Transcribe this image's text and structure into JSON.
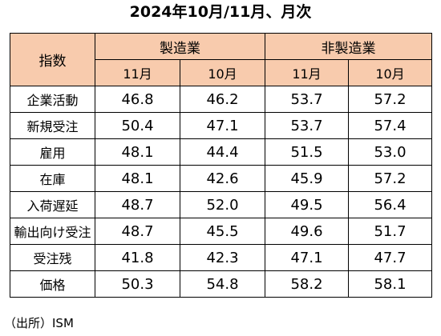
{
  "title": "2024年10月/11月、月次",
  "table": {
    "index_header": "指数",
    "groups": [
      "製造業",
      "非製造業"
    ],
    "subheaders": [
      "11月",
      "10月",
      "11月",
      "10月"
    ],
    "rows": [
      {
        "label": "企業活動",
        "values": [
          "46.8",
          "46.2",
          "53.7",
          "57.2"
        ]
      },
      {
        "label": "新規受注",
        "values": [
          "50.4",
          "47.1",
          "53.7",
          "57.4"
        ]
      },
      {
        "label": "雇用",
        "values": [
          "48.1",
          "44.4",
          "51.5",
          "53.0"
        ]
      },
      {
        "label": "在庫",
        "values": [
          "48.1",
          "42.6",
          "45.9",
          "57.2"
        ]
      },
      {
        "label": "入荷遅延",
        "values": [
          "48.7",
          "52.0",
          "49.5",
          "56.4"
        ]
      },
      {
        "label": "輸出向け受注",
        "values": [
          "48.7",
          "45.5",
          "49.6",
          "51.7"
        ]
      },
      {
        "label": "受注残",
        "values": [
          "41.8",
          "42.3",
          "47.1",
          "47.7"
        ]
      },
      {
        "label": "価格",
        "values": [
          "50.3",
          "54.8",
          "58.2",
          "58.1"
        ]
      }
    ]
  },
  "source": "（出所）ISM",
  "colors": {
    "header_background": "#f8cbad",
    "border": "#000000"
  }
}
